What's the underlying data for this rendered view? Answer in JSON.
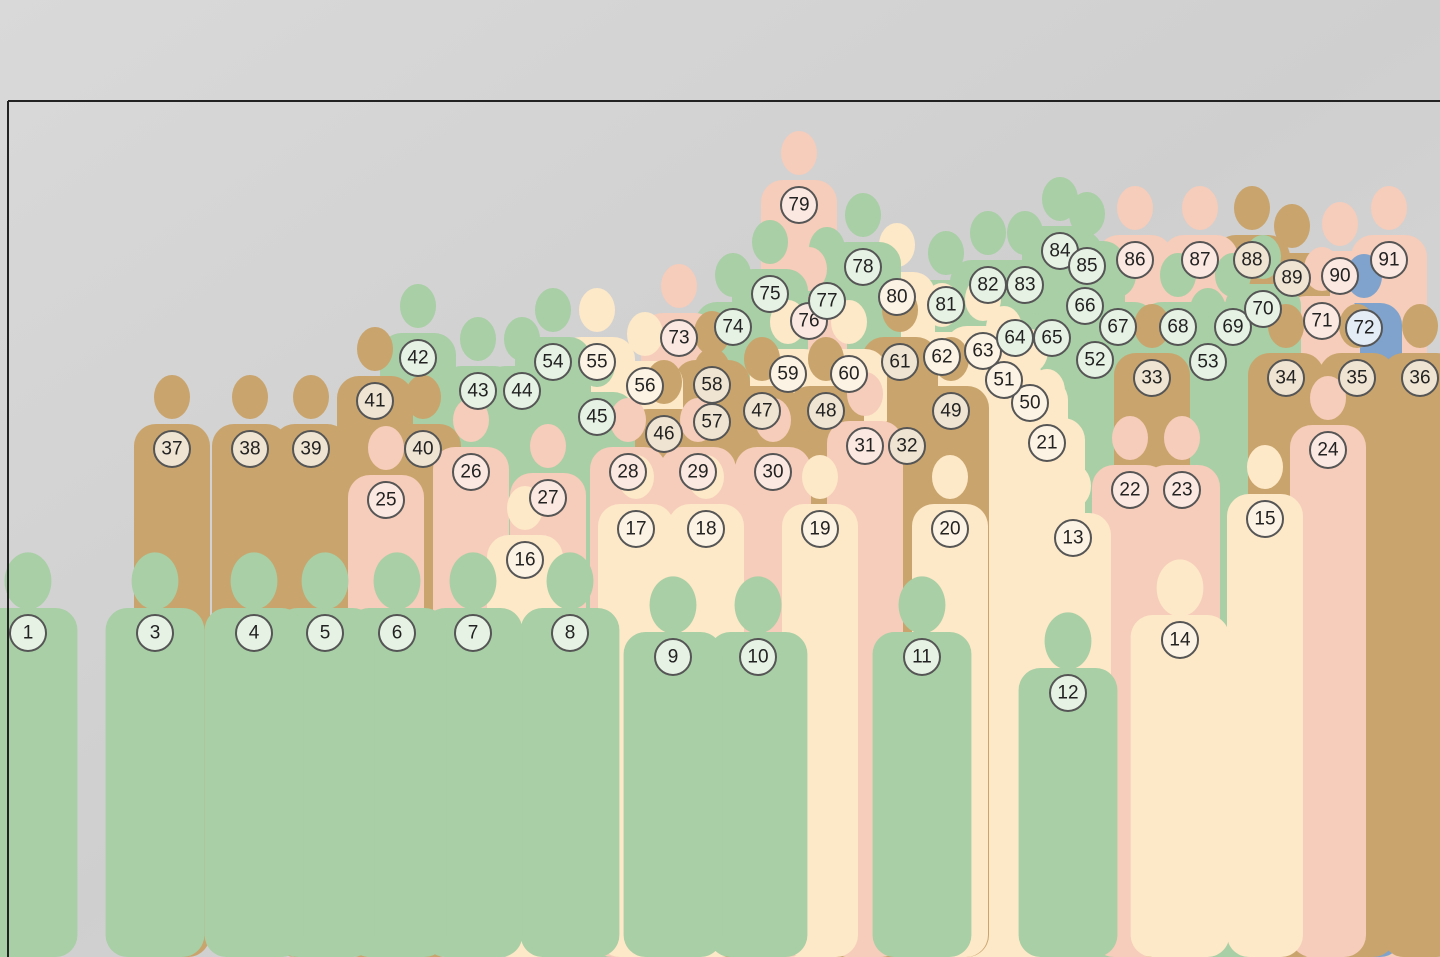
{
  "markers": [
    "1",
    "3",
    "4",
    "5",
    "6",
    "7",
    "8",
    "9",
    "10",
    "11",
    "12",
    "13",
    "14",
    "15",
    "16",
    "17",
    "18",
    "19",
    "20",
    "21",
    "22",
    "23",
    "24",
    "25",
    "26",
    "27",
    "28",
    "29",
    "30",
    "31",
    "32",
    "33",
    "34",
    "35",
    "36",
    "37",
    "38",
    "39",
    "40",
    "41",
    "42",
    "43",
    "44",
    "45",
    "46",
    "47",
    "48",
    "49",
    "50",
    "51",
    "52",
    "53",
    "54",
    "55",
    "56",
    "57",
    "58",
    "59",
    "60",
    "61",
    "62",
    "63",
    "64",
    "65",
    "66",
    "67",
    "68",
    "69",
    "70",
    "71",
    "72",
    "73",
    "74",
    "75",
    "76",
    "77",
    "78",
    "79",
    "80",
    "81",
    "82",
    "83",
    "84",
    "85",
    "86",
    "87",
    "88",
    "89",
    "90",
    "91"
  ]
}
